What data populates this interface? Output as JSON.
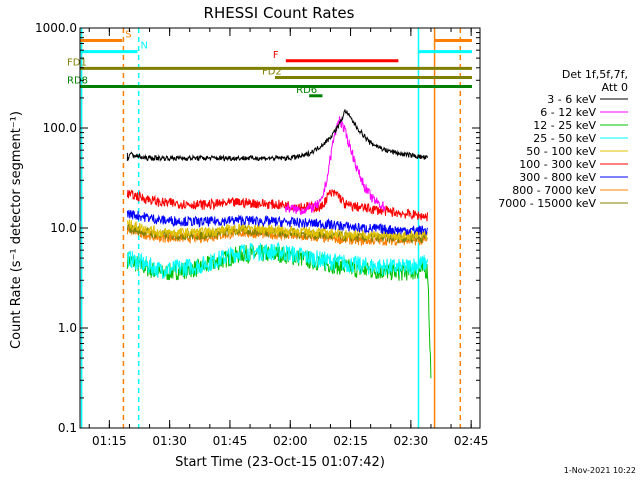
{
  "title": "RHESSI Count Rates",
  "timestamp": "1-Nov-2021 10:22",
  "chart_data": {
    "type": "line",
    "title": "RHESSI Count Rates",
    "xlabel": "Start Time (23-Oct-15 01:07:42)",
    "ylabel": "Count Rate (s⁻¹ detector segment⁻¹)",
    "y_scale": "log",
    "ylim": [
      0.1,
      1000
    ],
    "xlim_minutes_since_start": [
      0,
      99.5
    ],
    "x_tick_labels": [
      "01:15",
      "01:30",
      "01:45",
      "02:00",
      "02:15",
      "02:30",
      "02:45"
    ],
    "x_tick_minutes": [
      7.3,
      22.3,
      37.3,
      52.3,
      67.3,
      82.3,
      97.3
    ],
    "y_tick_labels": [
      "0.1",
      "1.0",
      "10.0",
      "100.0",
      "1000.0"
    ],
    "y_ticks": [
      0.1,
      1,
      10,
      100,
      1000
    ],
    "grid": false,
    "legend_header": [
      "Det 1f,5f,7f,",
      "Att 0"
    ],
    "legend_position": "right",
    "series": [
      {
        "name": "3 - 6 keV",
        "color": "#000000",
        "x": [
          11.8,
          12.3,
          16,
          30,
          45,
          52,
          56,
          59,
          62,
          64.5,
          66,
          69,
          72,
          76,
          80,
          84,
          86.5
        ],
        "values": [
          47,
          55,
          50,
          50,
          50,
          50,
          53,
          62,
          78,
          108,
          150,
          100,
          72,
          60,
          55,
          52,
          50
        ]
      },
      {
        "name": "6 - 12 keV",
        "color": "#ff00ff",
        "x": [
          51,
          55,
          58,
          60,
          61.5,
          63,
          64.5,
          66,
          67.5,
          69,
          71,
          73,
          76
        ],
        "values": [
          16,
          15,
          16,
          18,
          32,
          75,
          125,
          90,
          60,
          38,
          25,
          19,
          16
        ]
      },
      {
        "name": "12 - 25 keV",
        "color": "#00c000",
        "x": [
          11.8,
          20,
          30,
          40,
          50,
          60,
          70,
          80,
          86.5,
          87.3
        ],
        "values": [
          4.8,
          3.5,
          4.0,
          5.5,
          5.5,
          4.5,
          3.8,
          3.6,
          3.8,
          0.32
        ]
      },
      {
        "name": "25 - 50 keV",
        "color": "#00ffff",
        "x": [
          11.8,
          20,
          30,
          40,
          50,
          60,
          70,
          80,
          86.5
        ],
        "values": [
          5.0,
          3.8,
          4.2,
          5.8,
          5.8,
          4.8,
          4.2,
          4.0,
          4.5
        ]
      },
      {
        "name": "50 - 100 keV",
        "color": "#e0c000",
        "x": [
          11.8,
          20,
          30,
          40,
          50,
          60,
          70,
          80,
          86.5
        ],
        "values": [
          11,
          9,
          9,
          10,
          9.5,
          9,
          8.5,
          8.5,
          8.5
        ]
      },
      {
        "name": "100 - 300 keV",
        "color": "#ff0000",
        "x": [
          11.8,
          20,
          30,
          40,
          50,
          60,
          62,
          64,
          66,
          70,
          80,
          86.5
        ],
        "values": [
          22,
          18,
          17,
          18,
          17,
          16,
          22,
          22,
          17,
          16,
          14,
          13
        ]
      },
      {
        "name": "300 - 800 keV",
        "color": "#0000ff",
        "x": [
          11.8,
          20,
          30,
          40,
          50,
          60,
          70,
          80,
          86.5
        ],
        "values": [
          14,
          12,
          11.5,
          12,
          11.5,
          11,
          10,
          9.5,
          9.5
        ]
      },
      {
        "name": "800 - 7000 keV",
        "color": "#ff8000",
        "x": [
          11.8,
          20,
          30,
          40,
          50,
          60,
          70,
          80,
          86.5
        ],
        "values": [
          9.5,
          8,
          8,
          9,
          8.5,
          8,
          7.5,
          7.5,
          7.5
        ]
      },
      {
        "name": "7000 - 15000 keV",
        "color": "#808000",
        "x": [
          11.8,
          20,
          30,
          40,
          50,
          60,
          70,
          80,
          86.5
        ],
        "values": [
          10,
          8.5,
          8.5,
          9.5,
          9,
          8.5,
          8,
          8,
          8
        ]
      }
    ],
    "vertical_lines": [
      {
        "x": 0.4,
        "color": "#00ffff",
        "style": "solid"
      },
      {
        "x": 10.8,
        "color": "#ff8000",
        "style": "dashed"
      },
      {
        "x": 14.6,
        "color": "#00ffff",
        "style": "dashed"
      },
      {
        "x": 84.2,
        "color": "#00ffff",
        "style": "solid"
      },
      {
        "x": 88.2,
        "color": "#ff8000",
        "style": "solid"
      },
      {
        "x": 94.6,
        "color": "#ff8000",
        "style": "dashed"
      }
    ],
    "annotations": [
      {
        "label": "S",
        "color": "#ff8000",
        "y": 750,
        "segments": [
          [
            0,
            10.5
          ],
          [
            88.2,
            97.5
          ]
        ]
      },
      {
        "label": "N",
        "color": "#00ffff",
        "y": 580,
        "segments": [
          [
            0,
            14.3
          ],
          [
            84.2,
            97.5
          ]
        ]
      },
      {
        "label": "F",
        "color": "#ff0000",
        "y": 470,
        "segments": [
          [
            51.2,
            79.2
          ]
        ]
      },
      {
        "label": "FD1",
        "color": "#808000",
        "y": 395,
        "segments": [
          [
            0,
            97.5
          ]
        ]
      },
      {
        "label": "FD2",
        "color": "#808000",
        "y": 320,
        "segments": [
          [
            48.5,
            97.5
          ]
        ]
      },
      {
        "label": "RD8",
        "color": "#008000",
        "y": 260,
        "segments": [
          [
            0,
            97.5
          ]
        ]
      },
      {
        "label": "RD6",
        "color": "#008000",
        "y": 210,
        "segments": [
          [
            57,
            60.3
          ]
        ]
      }
    ]
  }
}
